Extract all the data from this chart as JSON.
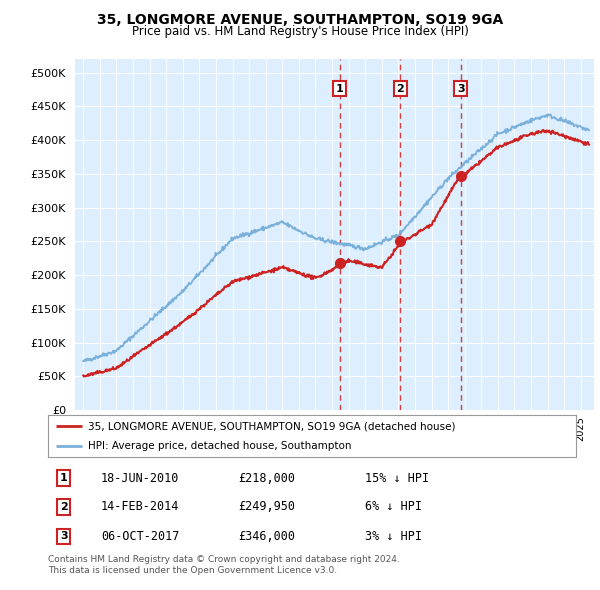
{
  "title": "35, LONGMORE AVENUE, SOUTHAMPTON, SO19 9GA",
  "subtitle": "Price paid vs. HM Land Registry's House Price Index (HPI)",
  "ytick_values": [
    0,
    50000,
    100000,
    150000,
    200000,
    250000,
    300000,
    350000,
    400000,
    450000,
    500000
  ],
  "xlim_start": 1994.5,
  "xlim_end": 2025.8,
  "ylim": [
    0,
    520000
  ],
  "hpi_color": "#7ab0d9",
  "price_color": "#cc2222",
  "plot_background": "#ddeeff",
  "sale_dates": [
    2010.46,
    2014.12,
    2017.76
  ],
  "sale_prices": [
    218000,
    249950,
    346000
  ],
  "sale_labels": [
    "1",
    "2",
    "3"
  ],
  "legend_label_price": "35, LONGMORE AVENUE, SOUTHAMPTON, SO19 9GA (detached house)",
  "legend_label_hpi": "HPI: Average price, detached house, Southampton",
  "table_data": [
    [
      "1",
      "18-JUN-2010",
      "£218,000",
      "15% ↓ HPI"
    ],
    [
      "2",
      "14-FEB-2014",
      "£249,950",
      "6% ↓ HPI"
    ],
    [
      "3",
      "06-OCT-2017",
      "£346,000",
      "3% ↓ HPI"
    ]
  ],
  "footer": "Contains HM Land Registry data © Crown copyright and database right 2024.\nThis data is licensed under the Open Government Licence v3.0."
}
